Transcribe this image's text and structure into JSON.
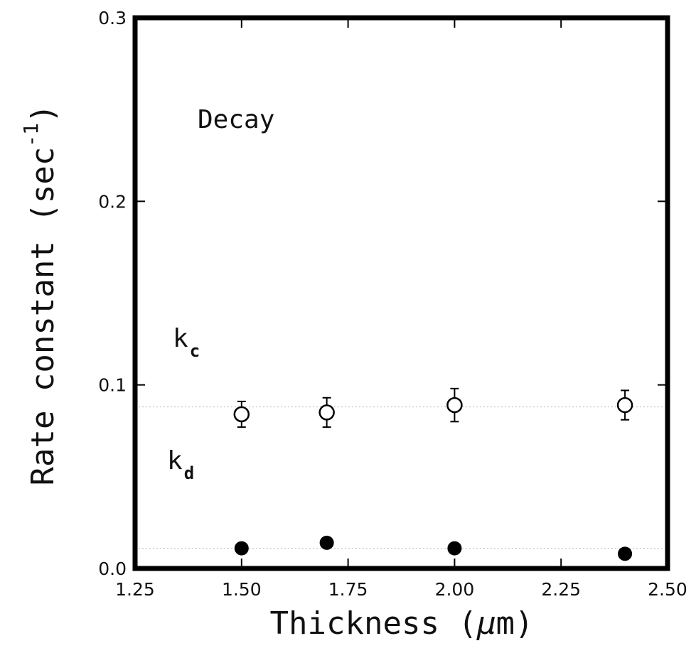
{
  "chart_data": {
    "type": "scatter",
    "xlabel_main": "Thickness (",
    "xlabel_mu": "μ",
    "xlabel_end": "m)",
    "ylabel_main": "Rate constant (sec",
    "ylabel_exp": "-1",
    "ylabel_end": ")",
    "xlim": [
      1.25,
      2.5
    ],
    "ylim": [
      0.0,
      0.3
    ],
    "x_ticks": [
      "1.25",
      "1.50",
      "1.75",
      "2.00",
      "2.25",
      "2.50"
    ],
    "y_ticks": [
      "0.0",
      "0.1",
      "0.2",
      "0.3"
    ],
    "annotation": "Decay",
    "series": [
      {
        "name_main": "k",
        "name_sub": "c",
        "marker": "open-circle",
        "x": [
          1.5,
          1.7,
          2.0,
          2.4
        ],
        "y": [
          0.084,
          0.085,
          0.089,
          0.089
        ],
        "yerr": [
          0.007,
          0.008,
          0.009,
          0.008
        ],
        "fit_y": 0.088
      },
      {
        "name_main": "k",
        "name_sub": "d",
        "marker": "filled-circle",
        "x": [
          1.5,
          1.7,
          2.0,
          2.4
        ],
        "y": [
          0.011,
          0.014,
          0.011,
          0.008
        ],
        "fit_y": 0.011
      }
    ]
  }
}
